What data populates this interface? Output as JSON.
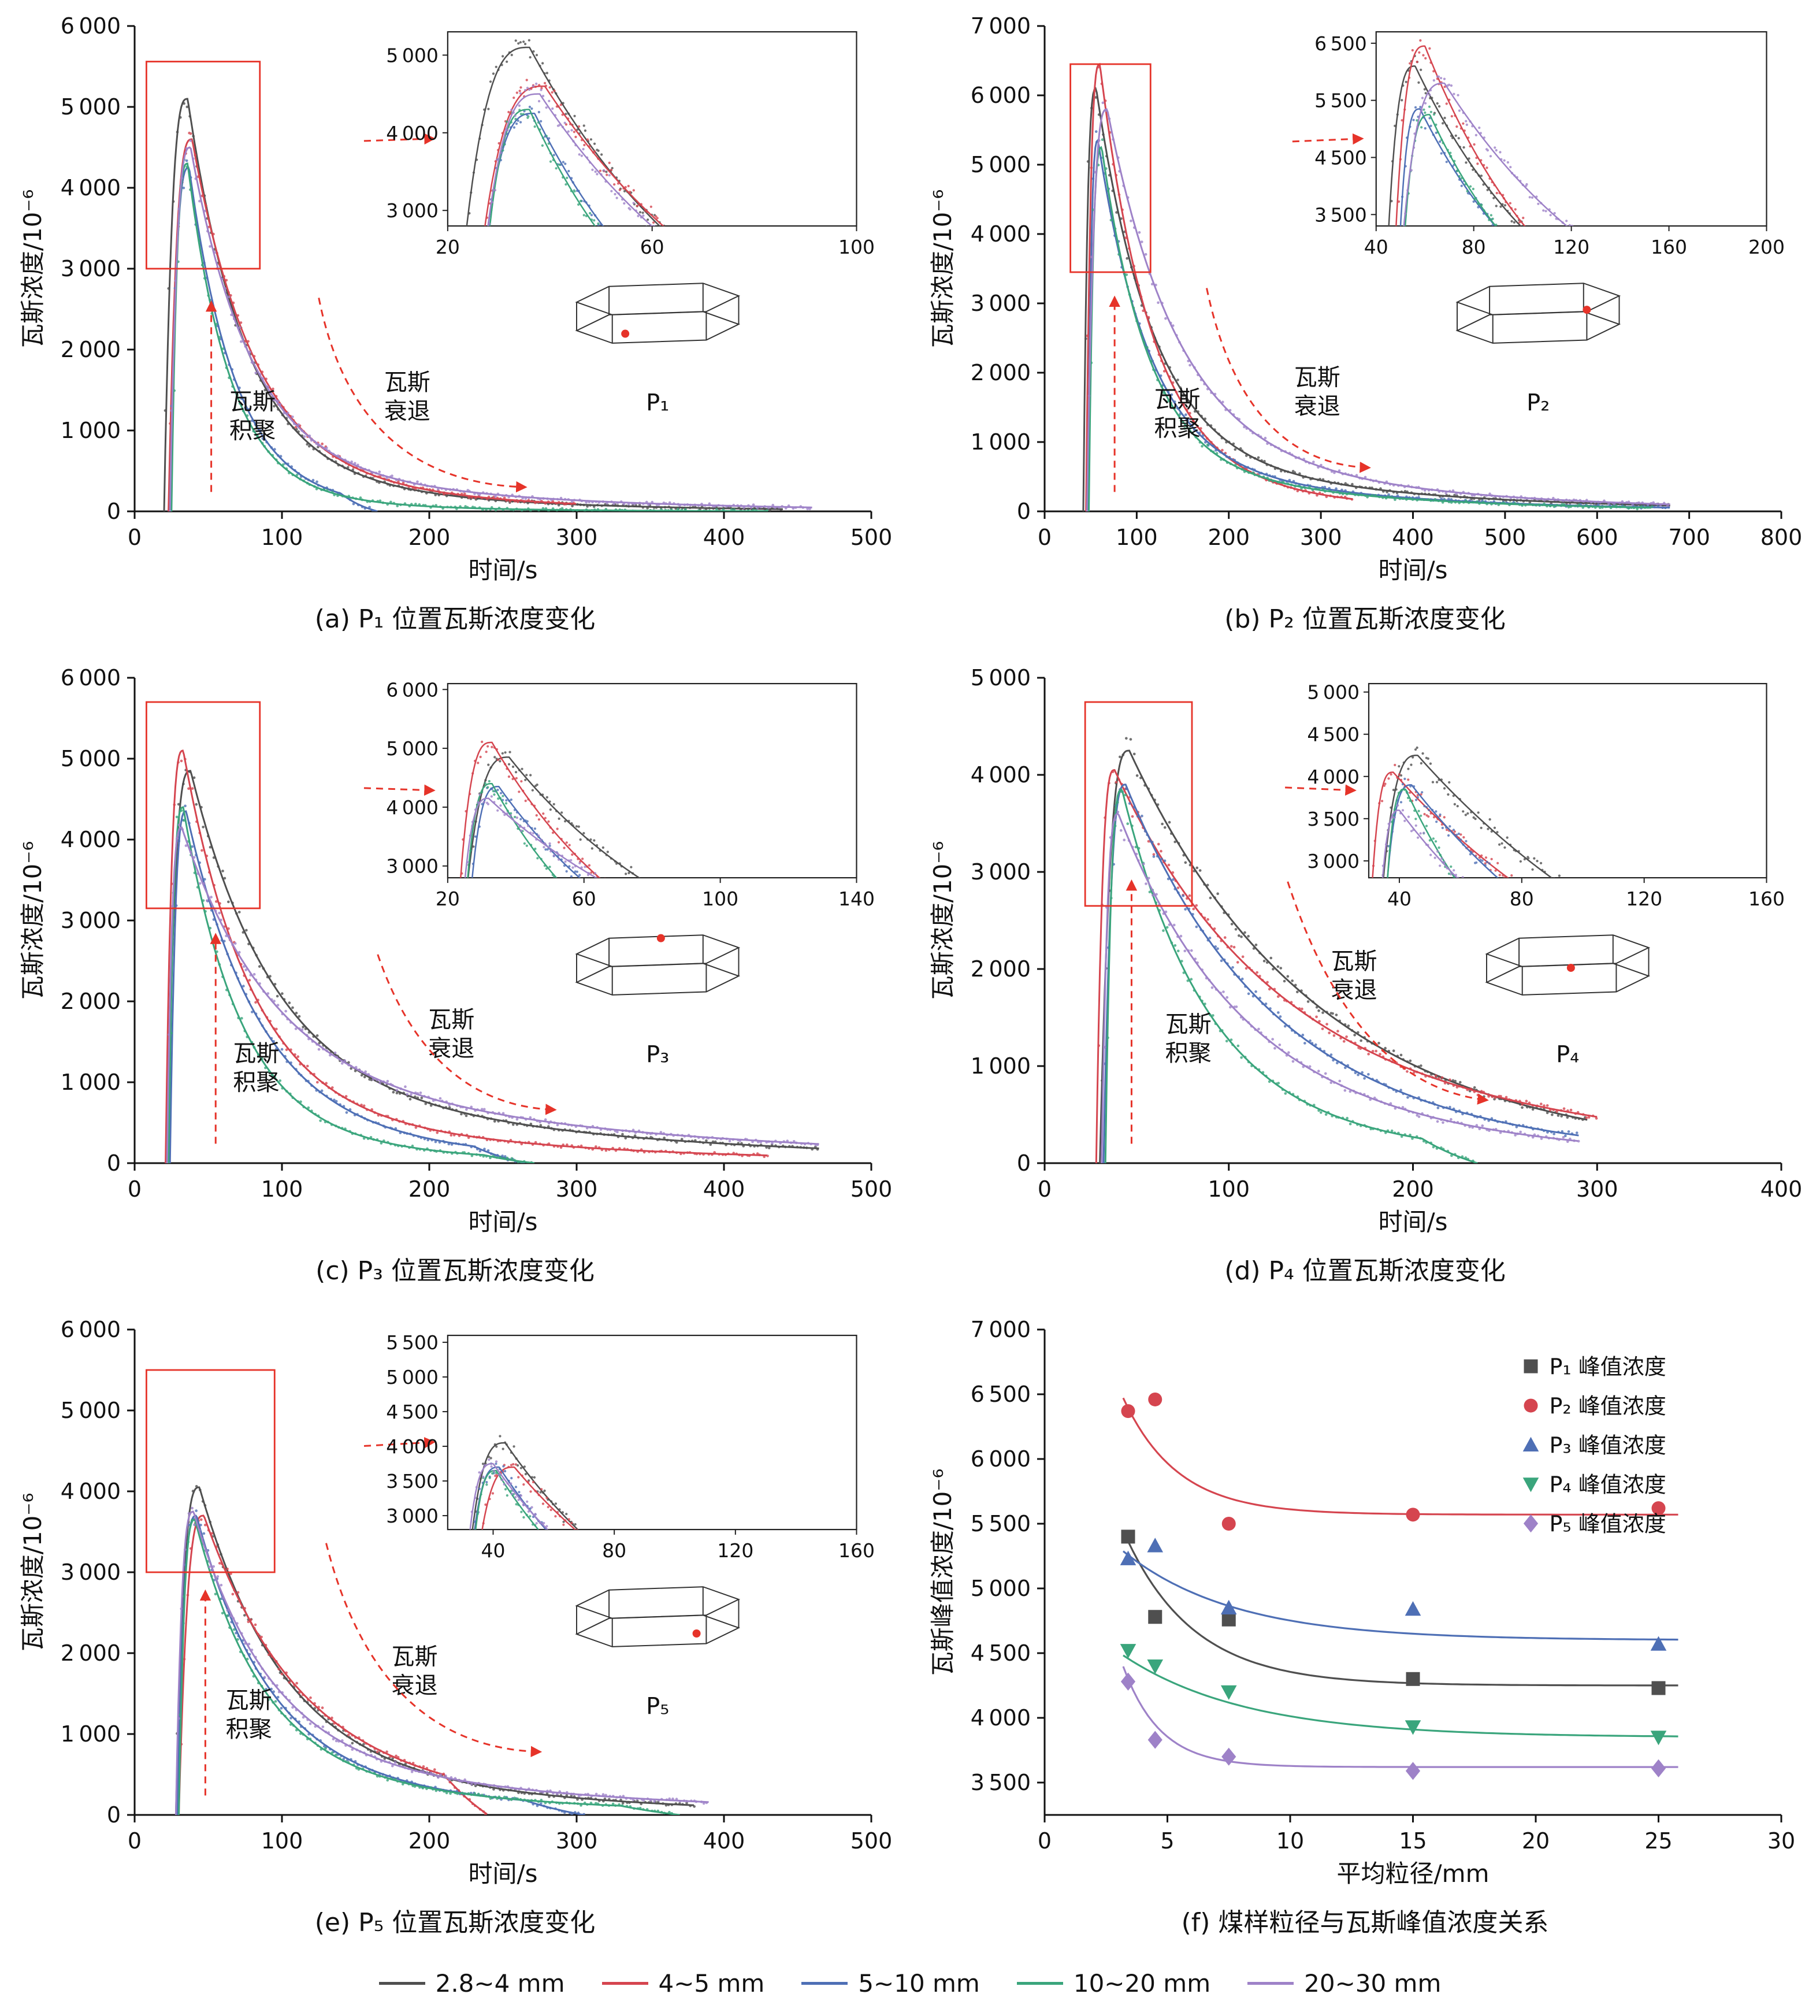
{
  "figure": {
    "background": "#ffffff"
  },
  "colors": {
    "gray": "#4f4f4f",
    "red": "#d5454f",
    "blue": "#4e6fb5",
    "green": "#3aa57c",
    "purple": "#9e82c8",
    "accent_red": "#e63329",
    "axis": "#111111"
  },
  "size_legend": [
    {
      "label": "2.8~4 mm",
      "color": "gray"
    },
    {
      "label": "4~5 mm",
      "color": "red"
    },
    {
      "label": "5~10 mm",
      "color": "blue"
    },
    {
      "label": "10~20 mm",
      "color": "green"
    },
    {
      "label": "20~30 mm",
      "color": "purple"
    }
  ],
  "chart_data": [
    {
      "id": "a",
      "type": "line",
      "caption": "(a) P₁ 位置瓦斯浓度变化",
      "xlabel": "时间/s",
      "ylabel": "瓦斯浓度/10⁻⁶",
      "xlim": [
        0,
        500
      ],
      "xticks": [
        0,
        100,
        200,
        300,
        400,
        500
      ],
      "ylim": [
        0,
        6000
      ],
      "yticks": [
        0,
        1000,
        2000,
        3000,
        4000,
        5000,
        6000
      ],
      "annotations": {
        "accumulation": [
          "瓦斯",
          "积聚"
        ],
        "decay": [
          "瓦斯",
          "衰退"
        ]
      },
      "probe": {
        "label": "P₁",
        "dot": [
          0.3,
          0.8
        ]
      },
      "zoom_rect": {
        "x": [
          8,
          85
        ],
        "y": [
          3000,
          5560
        ]
      },
      "inset": {
        "xlim": [
          20,
          100
        ],
        "xticks": [
          20,
          60,
          100
        ],
        "ylim": [
          2800,
          5300
        ],
        "yticks": [
          3000,
          4000,
          5000
        ]
      },
      "series": [
        {
          "size": "2.8~4 mm",
          "color": "gray",
          "t0": 20,
          "tp": 36,
          "peak": 5100,
          "tau1": 38,
          "tau2": 130,
          "w2": 0.12,
          "tend": 440
        },
        {
          "size": "4~5 mm",
          "color": "red",
          "t0": 23,
          "tp": 39,
          "peak": 4600,
          "tau1": 42,
          "tau2": 140,
          "w2": 0.12,
          "tend": 300
        },
        {
          "size": "5~10 mm",
          "color": "blue",
          "t0": 24,
          "tp": 37,
          "peak": 4250,
          "tau1": 30,
          "tau2": 70,
          "w2": 0.1,
          "tend": 165,
          "fade": 25
        },
        {
          "size": "10~20 mm",
          "color": "green",
          "t0": 25,
          "tp": 36,
          "peak": 4300,
          "tau1": 28,
          "tau2": 85,
          "w2": 0.08,
          "tend": 430
        },
        {
          "size": "20~30 mm",
          "color": "purple",
          "t0": 24,
          "tp": 38,
          "peak": 4500,
          "tau1": 40,
          "tau2": 160,
          "w2": 0.15,
          "tend": 460
        }
      ],
      "layout": {
        "inset_pos": [
          0.425,
          0.012,
          0.555,
          0.4
        ],
        "acc": {
          "ax": 0.104,
          "top": 0.43,
          "fx": 0.16,
          "fy": 0.21
        },
        "dec": {
          "fx": 0.37,
          "fy": 0.25,
          "a1": [
            0.25,
            0.44
          ],
          "cp": [
            0.3,
            0.06
          ],
          "a2": [
            0.53,
            0.05
          ]
        },
        "probe_pos": [
          0.6,
          0.53,
          0.22,
          0.13
        ]
      }
    },
    {
      "id": "b",
      "type": "line",
      "caption": "(b) P₂ 位置瓦斯浓度变化",
      "xlabel": "时间/s",
      "ylabel": "瓦斯浓度/10⁻⁶",
      "xlim": [
        0,
        800
      ],
      "xticks": [
        0,
        100,
        200,
        300,
        400,
        500,
        600,
        700,
        800
      ],
      "ylim": [
        0,
        7000
      ],
      "yticks": [
        0,
        1000,
        2000,
        3000,
        4000,
        5000,
        6000,
        7000
      ],
      "annotations": {
        "accumulation": [
          "瓦斯",
          "积聚"
        ],
        "decay": [
          "瓦斯",
          "衰退"
        ]
      },
      "probe": {
        "label": "P₂",
        "dot": [
          0.8,
          0.42
        ]
      },
      "zoom_rect": {
        "x": [
          28,
          115
        ],
        "y": [
          3450,
          6450
        ]
      },
      "inset": {
        "xlim": [
          40,
          200
        ],
        "xticks": [
          40,
          80,
          120,
          160,
          200
        ],
        "ylim": [
          3300,
          6700
        ],
        "yticks": [
          3500,
          4500,
          5500,
          6500
        ]
      },
      "series": [
        {
          "size": "2.8~4 mm",
          "color": "gray",
          "t0": 42,
          "tp": 56,
          "peak": 6100,
          "tau1": 60,
          "tau2": 260,
          "w2": 0.15,
          "tend": 680
        },
        {
          "size": "4~5 mm",
          "color": "red",
          "t0": 45,
          "tp": 60,
          "peak": 6450,
          "tau1": 55,
          "tau2": 160,
          "w2": 0.12,
          "tend": 335
        },
        {
          "size": "5~10 mm",
          "color": "blue",
          "t0": 47,
          "tp": 58,
          "peak": 5350,
          "tau1": 55,
          "tau2": 230,
          "w2": 0.15,
          "tend": 680
        },
        {
          "size": "10~20 mm",
          "color": "green",
          "t0": 48,
          "tp": 62,
          "peak": 5250,
          "tau1": 50,
          "tau2": 220,
          "w2": 0.15,
          "tend": 660
        },
        {
          "size": "20~30 mm",
          "color": "purple",
          "t0": 46,
          "tp": 68,
          "peak": 5800,
          "tau1": 75,
          "tau2": 260,
          "w2": 0.18,
          "tend": 680
        }
      ],
      "layout": {
        "inset_pos": [
          0.45,
          0.012,
          0.53,
          0.4
        ],
        "acc": {
          "ax": 0.095,
          "top": 0.44,
          "fx": 0.18,
          "fy": 0.215
        },
        "dec": {
          "fx": 0.37,
          "fy": 0.26,
          "a1": [
            0.22,
            0.46
          ],
          "cp": [
            0.27,
            0.1
          ],
          "a2": [
            0.44,
            0.09
          ]
        },
        "probe_pos": [
          0.56,
          0.53,
          0.22,
          0.13
        ]
      }
    },
    {
      "id": "c",
      "type": "line",
      "caption": "(c) P₃ 位置瓦斯浓度变化",
      "xlabel": "时间/s",
      "ylabel": "瓦斯浓度/10⁻⁶",
      "xlim": [
        0,
        500
      ],
      "xticks": [
        0,
        100,
        200,
        300,
        400,
        500
      ],
      "ylim": [
        0,
        6000
      ],
      "yticks": [
        0,
        1000,
        2000,
        3000,
        4000,
        5000,
        6000
      ],
      "annotations": {
        "accumulation": [
          "瓦斯",
          "积聚"
        ],
        "decay": [
          "瓦斯",
          "衰退"
        ]
      },
      "probe": {
        "label": "P₃",
        "dot": [
          0.52,
          0.05
        ]
      },
      "zoom_rect": {
        "x": [
          8,
          85
        ],
        "y": [
          3150,
          5700
        ]
      },
      "inset": {
        "xlim": [
          20,
          140
        ],
        "xticks": [
          20,
          60,
          100,
          140
        ],
        "ylim": [
          2800,
          6100
        ],
        "yticks": [
          3000,
          4000,
          5000,
          6000
        ]
      },
      "series": [
        {
          "size": "2.8~4 mm",
          "color": "gray",
          "t0": 22,
          "tp": 38,
          "peak": 4850,
          "tau1": 55,
          "tau2": 240,
          "w2": 0.22,
          "tend": 465
        },
        {
          "size": "4~5 mm",
          "color": "red",
          "t0": 21,
          "tp": 33,
          "peak": 5100,
          "tau1": 45,
          "tau2": 190,
          "w2": 0.15,
          "tend": 430
        },
        {
          "size": "5~10 mm",
          "color": "blue",
          "t0": 24,
          "tp": 35,
          "peak": 4350,
          "tau1": 48,
          "tau2": 130,
          "w2": 0.15,
          "tend": 265,
          "fade": 35
        },
        {
          "size": "10~20 mm",
          "color": "green",
          "t0": 23,
          "tp": 33,
          "peak": 4400,
          "tau1": 38,
          "tau2": 110,
          "w2": 0.12,
          "tend": 272,
          "fade": 35
        },
        {
          "size": "20~30 mm",
          "color": "purple",
          "t0": 22,
          "tp": 32,
          "peak": 4150,
          "tau1": 60,
          "tau2": 270,
          "w2": 0.28,
          "tend": 465
        }
      ],
      "layout": {
        "inset_pos": [
          0.425,
          0.012,
          0.555,
          0.4
        ],
        "acc": {
          "ax": 0.11,
          "top": 0.47,
          "fx": 0.165,
          "fy": 0.21
        },
        "dec": {
          "fx": 0.43,
          "fy": 0.28,
          "a1": [
            0.33,
            0.43
          ],
          "cp": [
            0.4,
            0.12
          ],
          "a2": [
            0.57,
            0.11
          ]
        },
        "probe_pos": [
          0.6,
          0.53,
          0.22,
          0.13
        ]
      }
    },
    {
      "id": "d",
      "type": "line",
      "caption": "(d) P₄ 位置瓦斯浓度变化",
      "xlabel": "时间/s",
      "ylabel": "瓦斯浓度/10⁻⁶",
      "xlim": [
        0,
        400
      ],
      "xticks": [
        0,
        100,
        200,
        300,
        400
      ],
      "ylim": [
        0,
        5000
      ],
      "yticks": [
        0,
        1000,
        2000,
        3000,
        4000,
        5000
      ],
      "annotations": {
        "accumulation": [
          "瓦斯",
          "积聚"
        ],
        "decay": [
          "瓦斯",
          "衰退"
        ]
      },
      "probe": {
        "label": "P₄",
        "dot": [
          0.52,
          0.52
        ]
      },
      "zoom_rect": {
        "x": [
          22,
          80
        ],
        "y": [
          2650,
          4750
        ]
      },
      "inset": {
        "xlim": [
          30,
          160
        ],
        "xticks": [
          40,
          80,
          120,
          160
        ],
        "ylim": [
          2800,
          5100
        ],
        "yticks": [
          3000,
          3500,
          4000,
          4500,
          5000
        ]
      },
      "series": [
        {
          "size": "2.8~4 mm",
          "color": "gray",
          "t0": 30,
          "tp": 46,
          "peak": 4250,
          "tau1": 95,
          "tau2": 180,
          "w2": 0.18,
          "tend": 295
        },
        {
          "size": "4~5 mm",
          "color": "red",
          "t0": 28,
          "tp": 38,
          "peak": 4050,
          "tau1": 80,
          "tau2": 220,
          "w2": 0.3,
          "tend": 300
        },
        {
          "size": "5~10 mm",
          "color": "blue",
          "t0": 32,
          "tp": 44,
          "peak": 3900,
          "tau1": 75,
          "tau2": 160,
          "w2": 0.2,
          "tend": 290
        },
        {
          "size": "10~20 mm",
          "color": "green",
          "t0": 33,
          "tp": 42,
          "peak": 3850,
          "tau1": 45,
          "tau2": 130,
          "w2": 0.15,
          "tend": 235,
          "fade": 30
        },
        {
          "size": "20~30 mm",
          "color": "purple",
          "t0": 31,
          "tp": 40,
          "peak": 3600,
          "tau1": 65,
          "tau2": 170,
          "w2": 0.2,
          "tend": 290
        }
      ],
      "layout": {
        "inset_pos": [
          0.44,
          0.012,
          0.54,
          0.4
        ],
        "acc": {
          "ax": 0.118,
          "top": 0.58,
          "fx": 0.195,
          "fy": 0.27
        },
        "dec": {
          "fx": 0.42,
          "fy": 0.4,
          "a1": [
            0.33,
            0.58
          ],
          "cp": [
            0.42,
            0.16
          ],
          "a2": [
            0.6,
            0.13
          ]
        },
        "probe_pos": [
          0.6,
          0.53,
          0.22,
          0.13
        ]
      }
    },
    {
      "id": "e",
      "type": "line",
      "caption": "(e) P₅ 位置瓦斯浓度变化",
      "xlabel": "时间/s",
      "ylabel": "瓦斯浓度/10⁻⁶",
      "xlim": [
        0,
        500
      ],
      "xticks": [
        0,
        100,
        200,
        300,
        400,
        500
      ],
      "ylim": [
        0,
        6000
      ],
      "yticks": [
        0,
        1000,
        2000,
        3000,
        4000,
        5000,
        6000
      ],
      "annotations": {
        "accumulation": [
          "瓦斯",
          "积聚"
        ],
        "decay": [
          "瓦斯",
          "衰退"
        ]
      },
      "probe": {
        "label": "P₅",
        "dot": [
          0.74,
          0.74
        ]
      },
      "zoom_rect": {
        "x": [
          8,
          95
        ],
        "y": [
          3000,
          5500
        ]
      },
      "inset": {
        "xlim": [
          25,
          160
        ],
        "xticks": [
          40,
          80,
          120,
          160
        ],
        "ylim": [
          2800,
          5600
        ],
        "yticks": [
          3000,
          3500,
          4000,
          4500,
          5000,
          5500
        ]
      },
      "series": [
        {
          "size": "2.8~4 mm",
          "color": "gray",
          "t0": 28,
          "tp": 44,
          "peak": 4050,
          "tau1": 55,
          "tau2": 170,
          "w2": 0.2,
          "tend": 380
        },
        {
          "size": "4~5 mm",
          "color": "red",
          "t0": 30,
          "tp": 47,
          "peak": 3700,
          "tau1": 62,
          "tau2": 170,
          "w2": 0.2,
          "tend": 240,
          "fade": 30
        },
        {
          "size": "5~10 mm",
          "color": "blue",
          "t0": 29,
          "tp": 42,
          "peak": 3700,
          "tau1": 48,
          "tau2": 150,
          "w2": 0.18,
          "tend": 305,
          "fade": 40
        },
        {
          "size": "10~20 mm",
          "color": "green",
          "t0": 30,
          "tp": 41,
          "peak": 3650,
          "tau1": 45,
          "tau2": 160,
          "w2": 0.18,
          "tend": 370,
          "fade": 40
        },
        {
          "size": "20~30 mm",
          "color": "purple",
          "t0": 28,
          "tp": 40,
          "peak": 3750,
          "tau1": 50,
          "tau2": 210,
          "w2": 0.22,
          "tend": 390
        }
      ],
      "layout": {
        "inset_pos": [
          0.425,
          0.012,
          0.555,
          0.4
        ],
        "acc": {
          "ax": 0.096,
          "top": 0.46,
          "fx": 0.155,
          "fy": 0.22
        },
        "dec": {
          "fx": 0.38,
          "fy": 0.31,
          "a1": [
            0.26,
            0.56
          ],
          "cp": [
            0.33,
            0.14
          ],
          "a2": [
            0.55,
            0.13
          ]
        },
        "probe_pos": [
          0.6,
          0.53,
          0.22,
          0.13
        ]
      }
    },
    {
      "id": "f",
      "type": "scatter",
      "caption": "(f) 煤样粒径与瓦斯峰值浓度关系",
      "xlabel": "平均粒径/mm",
      "ylabel": "瓦斯峰值浓度/10⁻⁶",
      "xlim": [
        0,
        30
      ],
      "xticks": [
        0,
        5,
        10,
        15,
        20,
        25,
        30
      ],
      "ylim": [
        3250,
        7000
      ],
      "yticks": [
        3500,
        4000,
        4500,
        5000,
        5500,
        6000,
        6500,
        7000
      ],
      "x": [
        3.4,
        4.5,
        7.5,
        15,
        25
      ],
      "series": [
        {
          "name": "P₁ 峰值浓度",
          "marker": "square",
          "color": "gray",
          "values": [
            5400,
            4780,
            4760,
            4300,
            4230
          ],
          "fit": {
            "a": 4250,
            "b": 3750,
            "c": 2.8
          }
        },
        {
          "name": "P₂ 峰值浓度",
          "marker": "circle",
          "color": "red",
          "values": [
            6370,
            6460,
            5500,
            5570,
            5620
          ],
          "fit": {
            "a": 5570,
            "b": 3860,
            "c": 2.2
          }
        },
        {
          "name": "P₃ 峰值浓度",
          "marker": "triangle-up",
          "color": "blue",
          "values": [
            5230,
            5330,
            4850,
            4840,
            4570
          ],
          "fit": {
            "a": 4600,
            "b": 1400,
            "c": 4.5
          }
        },
        {
          "name": "P₄ 峰值浓度",
          "marker": "triangle-down",
          "color": "green",
          "values": [
            4520,
            4400,
            4200,
            3930,
            3850
          ],
          "fit": {
            "a": 3850,
            "b": 1200,
            "c": 5.0
          }
        },
        {
          "name": "P₅ 峰值浓度",
          "marker": "diamond",
          "color": "purple",
          "values": [
            4280,
            3830,
            3700,
            3590,
            3610
          ],
          "fit": {
            "a": 3620,
            "b": 6560,
            "c": 1.5
          }
        }
      ],
      "layout": {
        "legend": [
          0.66,
          0.04
        ]
      }
    }
  ]
}
